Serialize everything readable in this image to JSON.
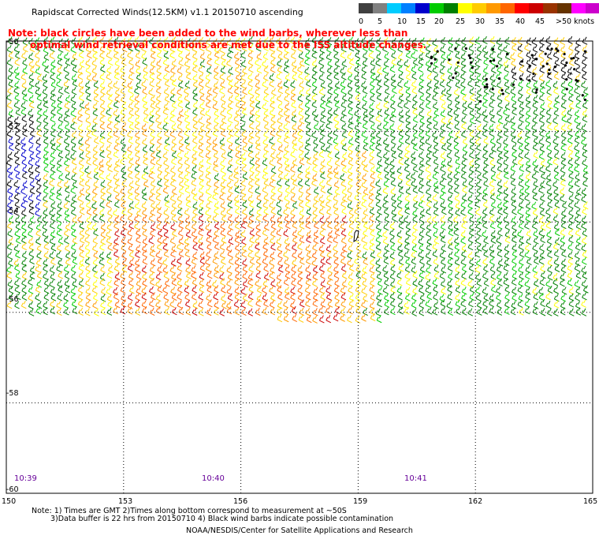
{
  "title": "Rapidscat Corrected Winds(12.5KM) v1.1 20150710 ascending",
  "note_lines": [
    "Note: black circles have been added to the wind barbs, wherever less than",
    "optimal wind retrieval conditions are met due to the ISS altitude changes."
  ],
  "legend": {
    "colors": [
      "#404040",
      "#808080",
      "#00ccff",
      "#0080ff",
      "#0000cc",
      "#00cc00",
      "#008000",
      "#ffff00",
      "#ffcc00",
      "#ff9900",
      "#ff6600",
      "#ff0000",
      "#cc0000",
      "#993300",
      "#663300",
      "#ff00ff",
      "#cc00cc",
      "#660099",
      "#330066"
    ],
    "labels": [
      "0",
      "5",
      "10",
      "15",
      "20",
      "25",
      "30",
      "35",
      "40",
      "45",
      ">50 knots"
    ]
  },
  "lat_labels": [
    "-50",
    "-52",
    "-54",
    "-56",
    "-58",
    "-60"
  ],
  "lon_labels": [
    "150",
    "153",
    "156",
    "159",
    "162",
    "165"
  ],
  "time_labels": [
    "10:39",
    "10:40",
    "10:41"
  ],
  "footer": {
    "line1": "Note: 1) Times are GMT 2)Times along bottom correspond to measurement at ~50S",
    "line2": "3)Data buffer is 22 hrs from 20150710 4) Black wind barbs indicate possible contamination",
    "line3": "NOAA/NESDIS/Center for Satellite Applications and Research"
  },
  "map_region": {
    "lon_range": [
      150,
      165
    ],
    "lat_range": [
      -60,
      -50
    ],
    "grid": true,
    "wind_speed_units": "knots"
  }
}
